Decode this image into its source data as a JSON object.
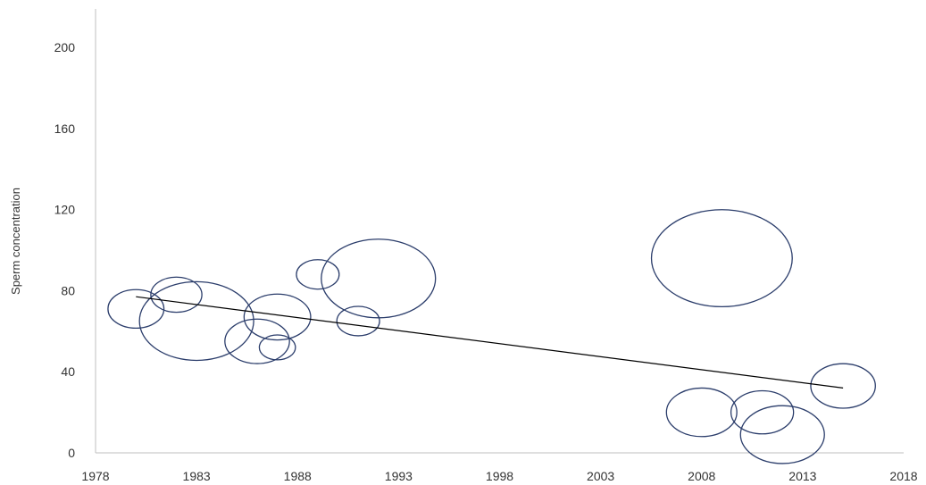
{
  "chart_data": {
    "type": "bubble",
    "title": "",
    "xlabel": "",
    "ylabel": "Sperm concentration",
    "xlim": [
      1978,
      2018
    ],
    "ylim": [
      0,
      200
    ],
    "x_ticks": [
      1978,
      1983,
      1988,
      1993,
      1998,
      2003,
      2008,
      2013,
      2018
    ],
    "y_ticks": [
      0,
      40,
      80,
      120,
      160,
      200
    ],
    "x_tick_labels": [
      "1978",
      "1983",
      "1988",
      "1993",
      "1998",
      "2003",
      "2008",
      "2013",
      "2018"
    ],
    "y_tick_labels": [
      "0",
      "40",
      "80",
      "120",
      "160",
      "200"
    ],
    "grid": false,
    "legend": "none",
    "bubble_stroke_color": "#2b3d6b",
    "trendline_color": "#000000",
    "points": [
      {
        "x": 1980,
        "y": 71,
        "size": 1.2
      },
      {
        "x": 1982,
        "y": 78,
        "size": 1.0
      },
      {
        "x": 1983,
        "y": 65,
        "size": 5.0
      },
      {
        "x": 1986,
        "y": 55,
        "size": 1.6
      },
      {
        "x": 1987,
        "y": 67,
        "size": 1.7
      },
      {
        "x": 1987,
        "y": 52,
        "size": 0.5
      },
      {
        "x": 1989,
        "y": 88,
        "size": 0.7
      },
      {
        "x": 1991,
        "y": 65,
        "size": 0.7
      },
      {
        "x": 1992,
        "y": 86,
        "size": 5.0
      },
      {
        "x": 2008,
        "y": 20,
        "size": 1.9
      },
      {
        "x": 2009,
        "y": 96,
        "size": 7.6
      },
      {
        "x": 2011,
        "y": 20,
        "size": 1.5
      },
      {
        "x": 2012,
        "y": 9,
        "size": 2.7
      },
      {
        "x": 2015,
        "y": 33,
        "size": 1.6
      }
    ],
    "trendline": {
      "x": [
        1980,
        2015
      ],
      "y": [
        77,
        32
      ]
    }
  }
}
